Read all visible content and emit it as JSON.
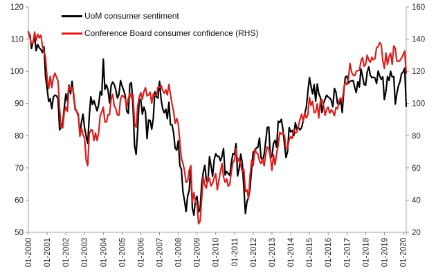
{
  "chart_data": {
    "type": "line",
    "title": "",
    "xlabel": "",
    "ylabel_left": "",
    "ylabel_right": "",
    "frequency": "monthly",
    "x_start": "01-2000",
    "x_end": "03-2020",
    "x_tick_every_months": 12,
    "x_tick_labels": [
      "01-2000",
      "01-2001",
      "01-2002",
      "01-2003",
      "01-2004",
      "01-2005",
      "01-2006",
      "01-2007",
      "01-2008",
      "01-2009",
      "01-2010",
      "01-2011",
      "01-2012",
      "01-2013",
      "01-2014",
      "01-2015",
      "01-2016",
      "01-2017",
      "01-2018",
      "01-2019",
      "01-2020"
    ],
    "left_axis": {
      "min": 50,
      "max": 120,
      "step": 10,
      "ticks": [
        50,
        60,
        70,
        80,
        90,
        100,
        110,
        120
      ]
    },
    "right_axis": {
      "min": 20,
      "max": 160,
      "step": 20,
      "ticks": [
        20,
        40,
        60,
        80,
        100,
        120,
        140,
        160
      ]
    },
    "grid": false,
    "legend_position": "top-left-inside",
    "series": [
      {
        "name": "UoM consumer sentiment",
        "color": "#000000",
        "axis": "left",
        "values": [
          112.0,
          111.3,
          107.1,
          109.2,
          110.7,
          106.4,
          108.3,
          107.3,
          106.8,
          105.8,
          107.6,
          98.4,
          94.7,
          90.6,
          91.5,
          88.4,
          92.0,
          92.6,
          92.4,
          91.5,
          81.8,
          82.7,
          83.9,
          88.8,
          93.0,
          90.7,
          95.7,
          93.0,
          96.9,
          92.4,
          88.1,
          87.6,
          86.1,
          80.6,
          84.2,
          86.7,
          82.4,
          79.9,
          77.6,
          86.0,
          92.1,
          89.7,
          90.9,
          89.3,
          87.7,
          89.6,
          93.7,
          92.6,
          103.8,
          94.4,
          95.8,
          94.2,
          90.2,
          95.6,
          96.7,
          95.9,
          94.2,
          91.7,
          92.8,
          97.1,
          95.5,
          94.1,
          92.6,
          87.7,
          86.9,
          96.0,
          96.5,
          89.1,
          76.9,
          74.2,
          81.6,
          91.5,
          91.2,
          86.7,
          88.9,
          87.4,
          79.1,
          84.9,
          84.7,
          82.0,
          85.4,
          93.6,
          92.1,
          91.7,
          96.9,
          91.3,
          88.4,
          87.1,
          88.3,
          85.3,
          90.4,
          83.4,
          83.4,
          80.9,
          76.1,
          75.5,
          78.4,
          70.8,
          69.5,
          62.6,
          59.8,
          56.4,
          61.2,
          63.0,
          70.3,
          57.6,
          55.3,
          60.1,
          61.2,
          56.3,
          57.3,
          65.1,
          68.7,
          70.8,
          66.0,
          65.7,
          73.5,
          70.6,
          67.4,
          72.5,
          74.4,
          73.6,
          73.6,
          72.2,
          73.6,
          76.0,
          67.8,
          68.9,
          68.2,
          67.7,
          71.6,
          74.5,
          74.2,
          77.5,
          67.5,
          69.8,
          74.3,
          71.5,
          63.7,
          55.8,
          59.5,
          60.8,
          63.7,
          69.9,
          75.0,
          75.3,
          76.2,
          76.4,
          79.3,
          73.2,
          72.3,
          74.3,
          78.3,
          82.6,
          82.7,
          72.9,
          73.8,
          77.6,
          78.6,
          76.4,
          84.5,
          84.1,
          85.1,
          82.1,
          77.5,
          73.2,
          75.1,
          82.5,
          81.2,
          81.6,
          80.0,
          84.1,
          81.9,
          82.5,
          81.8,
          82.5,
          84.6,
          86.9,
          88.8,
          93.6,
          98.1,
          95.4,
          93.0,
          95.9,
          90.7,
          96.1,
          93.1,
          91.9,
          87.2,
          90.0,
          91.3,
          92.6,
          92.0,
          91.7,
          91.0,
          89.0,
          94.7,
          93.5,
          90.0,
          89.8,
          91.2,
          87.2,
          93.8,
          98.2,
          98.5,
          96.3,
          96.9,
          97.0,
          97.1,
          95.0,
          93.4,
          96.8,
          95.1,
          100.7,
          98.5,
          95.9,
          95.7,
          99.7,
          101.4,
          98.8,
          98.0,
          98.2,
          97.9,
          96.2,
          100.1,
          98.6,
          97.5,
          98.3,
          91.2,
          93.8,
          98.4,
          97.2,
          100.0,
          98.2,
          98.4,
          89.8,
          93.2,
          95.5,
          96.8,
          99.3,
          99.8,
          101.0,
          89.1
        ]
      },
      {
        "name": "Conference Board consumer confidence (RHS)",
        "color": "#da1e1e",
        "axis": "right",
        "values": [
          144.7,
          140.8,
          137.1,
          137.7,
          144.4,
          139.2,
          143.0,
          140.8,
          142.5,
          135.8,
          132.6,
          128.6,
          115.7,
          109.2,
          116.9,
          109.9,
          116.1,
          118.9,
          116.3,
          114.0,
          97.0,
          85.3,
          84.9,
          94.6,
          97.8,
          95.0,
          110.7,
          108.5,
          110.3,
          106.3,
          97.4,
          94.5,
          93.7,
          79.6,
          84.9,
          80.3,
          78.8,
          64.8,
          61.4,
          81.0,
          83.6,
          83.5,
          77.0,
          81.7,
          77.0,
          81.7,
          92.5,
          94.8,
          97.7,
          88.5,
          88.5,
          93.0,
          93.1,
          102.8,
          105.7,
          98.7,
          96.7,
          92.9,
          92.6,
          102.7,
          105.1,
          104.4,
          103.0,
          97.5,
          103.1,
          106.2,
          103.6,
          105.5,
          87.5,
          85.2,
          98.3,
          103.8,
          106.8,
          102.7,
          107.5,
          109.8,
          104.7,
          105.4,
          107.0,
          100.2,
          105.9,
          105.1,
          105.3,
          110.0,
          110.2,
          111.2,
          108.2,
          106.3,
          108.5,
          105.3,
          111.9,
          105.6,
          99.5,
          95.2,
          87.8,
          90.6,
          87.3,
          76.4,
          65.9,
          62.8,
          58.1,
          51.0,
          51.9,
          58.5,
          61.4,
          38.8,
          44.7,
          38.6,
          37.4,
          25.3,
          26.9,
          40.8,
          54.8,
          49.3,
          47.4,
          54.5,
          53.4,
          48.7,
          50.6,
          53.6,
          56.5,
          46.4,
          52.3,
          57.7,
          62.7,
          54.3,
          51.0,
          53.2,
          48.6,
          49.9,
          57.8,
          63.4,
          64.8,
          72.0,
          63.8,
          66.0,
          61.7,
          57.6,
          59.2,
          45.2,
          46.4,
          40.9,
          55.2,
          64.8,
          61.5,
          71.6,
          69.5,
          68.7,
          64.4,
          62.7,
          65.4,
          61.3,
          68.4,
          73.1,
          71.5,
          66.7,
          58.4,
          68.0,
          61.9,
          69.0,
          74.3,
          82.1,
          81.0,
          81.8,
          80.2,
          72.4,
          72.0,
          77.5,
          79.4,
          78.3,
          83.9,
          81.7,
          82.2,
          86.4,
          90.3,
          93.4,
          89.0,
          94.1,
          91.0,
          93.1,
          103.8,
          98.8,
          101.4,
          94.3,
          94.6,
          99.8,
          91.0,
          101.3,
          102.6,
          99.1,
          92.6,
          96.3,
          97.8,
          94.0,
          96.1,
          94.7,
          92.4,
          97.4,
          96.7,
          101.8,
          103.5,
          100.8,
          109.4,
          113.3,
          111.6,
          116.1,
          124.9,
          119.4,
          117.6,
          117.3,
          120.0,
          120.4,
          120.6,
          126.2,
          128.6,
          123.1,
          124.3,
          130.0,
          127.0,
          125.6,
          128.8,
          127.1,
          127.9,
          134.7,
          135.3,
          137.9,
          136.4,
          126.6,
          121.7,
          131.4,
          124.2,
          129.2,
          131.3,
          124.3,
          135.8,
          134.2,
          126.3,
          126.1,
          126.8,
          128.2,
          130.4,
          132.6,
          118.8
        ]
      }
    ]
  },
  "colors": {
    "background": "#ffffff",
    "axis_line": "#a6a6a6",
    "tick_mark": "#8c8c8c",
    "tick_label": "#262626",
    "series_uom": "#000000",
    "series_cb": "#da1e1e"
  }
}
